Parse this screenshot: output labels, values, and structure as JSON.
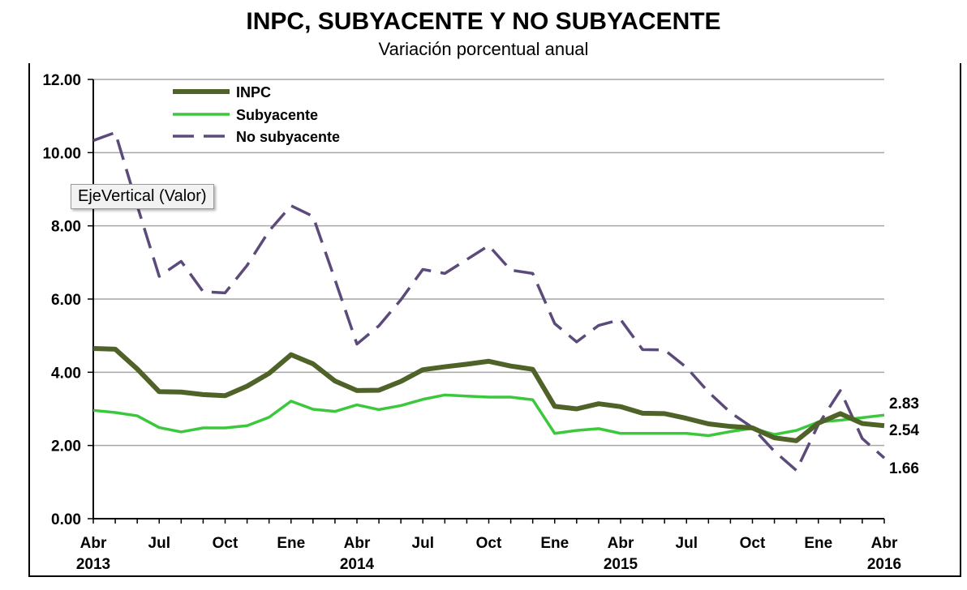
{
  "chart_data": {
    "type": "line",
    "title": "INPC, SUBYACENTE Y NO SUBYACENTE",
    "subtitle": "Variación porcentual anual",
    "ylim": [
      0,
      12
    ],
    "yticks": [
      "0.00",
      "2.00",
      "4.00",
      "6.00",
      "8.00",
      "10.00",
      "12.00"
    ],
    "grid": true,
    "legend_position": "top-left",
    "x_tick_labels": [
      {
        "month": "Abr",
        "year": "2013"
      },
      {
        "month": "Jul",
        "year": ""
      },
      {
        "month": "Oct",
        "year": ""
      },
      {
        "month": "Ene",
        "year": ""
      },
      {
        "month": "Abr",
        "year": "2014"
      },
      {
        "month": "Jul",
        "year": ""
      },
      {
        "month": "Oct",
        "year": ""
      },
      {
        "month": "Ene",
        "year": ""
      },
      {
        "month": "Abr",
        "year": "2015"
      },
      {
        "month": "Jul",
        "year": ""
      },
      {
        "month": "Oct",
        "year": ""
      },
      {
        "month": "Ene",
        "year": ""
      },
      {
        "month": "Abr",
        "year": "2016"
      }
    ],
    "series": [
      {
        "name": "INPC",
        "color": "#4f6228",
        "style": "solid-thick",
        "end_label": "2.54",
        "values": [
          4.65,
          4.63,
          4.09,
          3.47,
          3.46,
          3.39,
          3.36,
          3.62,
          3.97,
          4.48,
          4.23,
          3.76,
          3.5,
          3.51,
          3.75,
          4.07,
          4.15,
          4.22,
          4.3,
          4.17,
          4.08,
          3.07,
          3.0,
          3.14,
          3.06,
          2.88,
          2.87,
          2.74,
          2.59,
          2.52,
          2.48,
          2.21,
          2.13,
          2.61,
          2.87,
          2.6,
          2.54
        ]
      },
      {
        "name": "Subyacente",
        "color": "#3cc83c",
        "style": "solid",
        "end_label": "2.83",
        "values": [
          2.96,
          2.9,
          2.81,
          2.49,
          2.37,
          2.48,
          2.48,
          2.54,
          2.77,
          3.21,
          2.99,
          2.93,
          3.11,
          2.98,
          3.09,
          3.26,
          3.38,
          3.35,
          3.32,
          3.32,
          3.25,
          2.33,
          2.41,
          2.46,
          2.33,
          2.33,
          2.33,
          2.33,
          2.27,
          2.38,
          2.47,
          2.3,
          2.41,
          2.64,
          2.69,
          2.76,
          2.83
        ]
      },
      {
        "name": "No subyacente",
        "color": "#5b4a7a",
        "style": "dashed",
        "end_label": "1.66",
        "values": [
          10.33,
          10.55,
          8.55,
          6.62,
          7.03,
          6.2,
          6.17,
          6.92,
          7.86,
          8.55,
          8.26,
          6.53,
          4.77,
          5.27,
          5.98,
          6.81,
          6.7,
          7.08,
          7.46,
          6.79,
          6.7,
          5.33,
          4.83,
          5.28,
          5.44,
          4.62,
          4.61,
          4.13,
          3.46,
          2.9,
          2.49,
          1.84,
          1.32,
          2.57,
          3.5,
          2.19,
          1.66
        ]
      }
    ]
  },
  "tooltip": {
    "text": "EjeVertical (Valor)"
  }
}
